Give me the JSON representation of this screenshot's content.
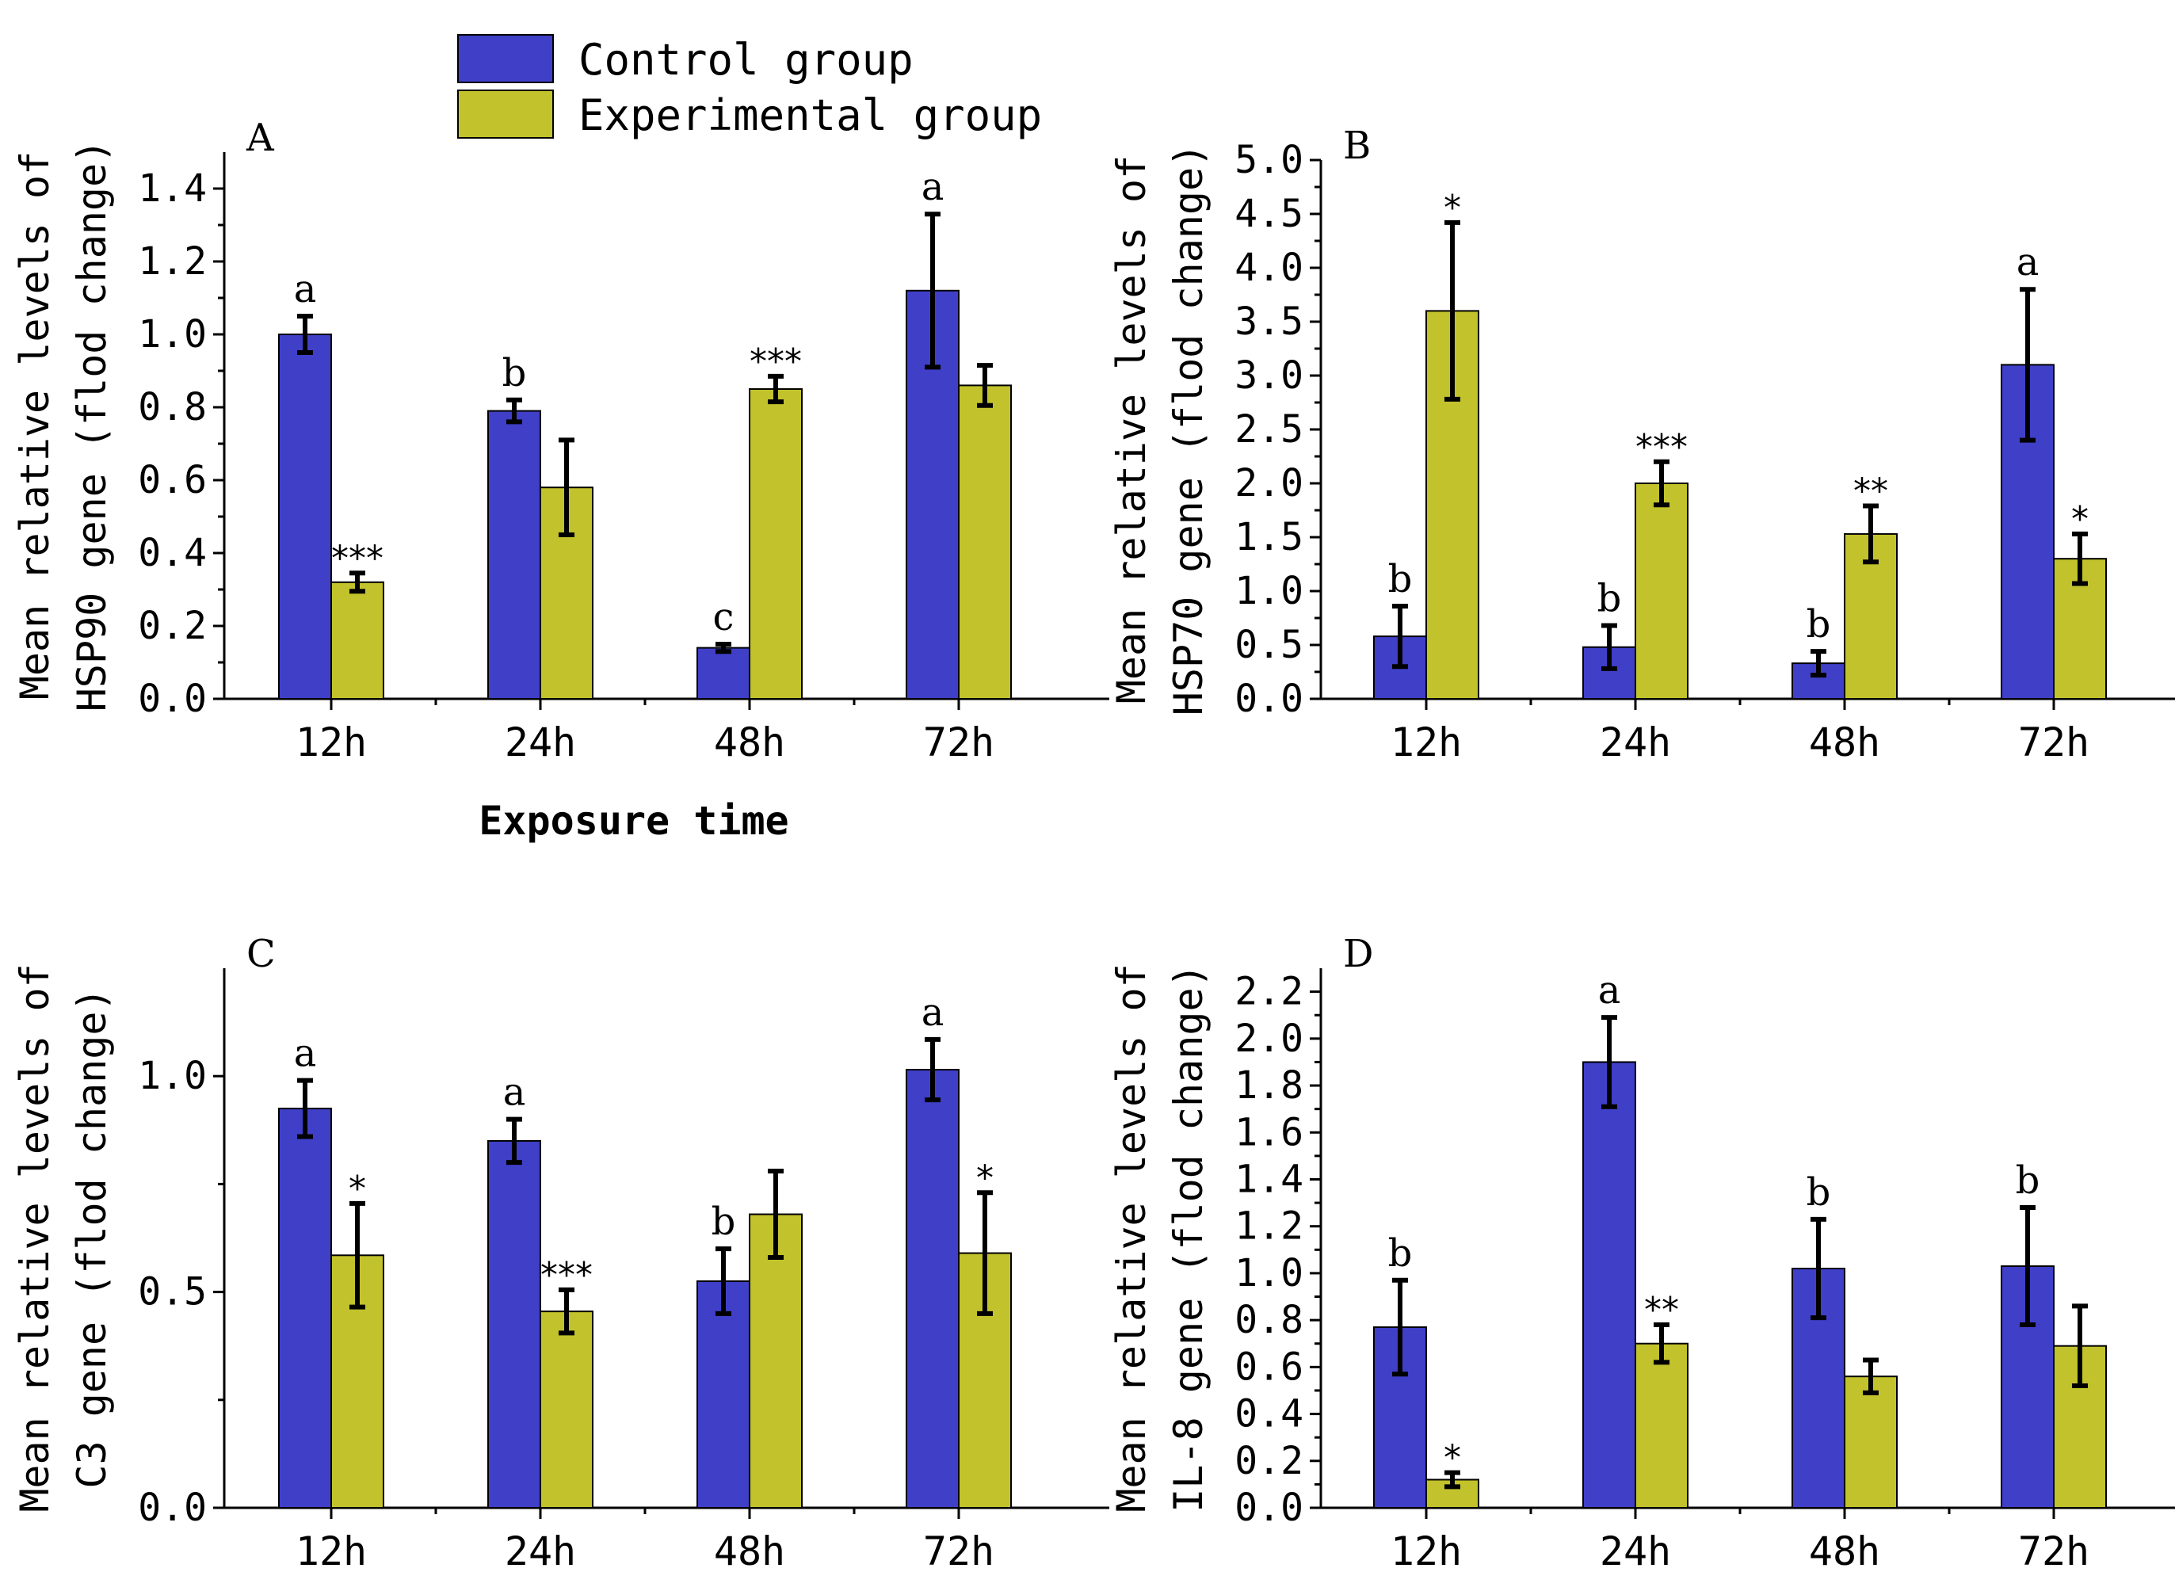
{
  "legend": {
    "entries": [
      {
        "name": "Control group",
        "color": "#3f3fc8"
      },
      {
        "name": "Experimental group",
        "color": "#c2c22c"
      }
    ]
  },
  "shared_xlabel": "Exposure time",
  "chart_data": [
    {
      "type": "bar",
      "panel": "A",
      "ylabel_line1": "Mean relative levels of",
      "ylabel_line2": "HSP90 gene (flod change)",
      "categories": [
        "12h",
        "24h",
        "48h",
        "72h"
      ],
      "ylim": [
        0,
        1.5
      ],
      "yticks": [
        "0.0",
        "0.2",
        "0.4",
        "0.6",
        "0.8",
        "1.0",
        "1.2",
        "1.4"
      ],
      "ytick_values": [
        0.0,
        0.2,
        0.4,
        0.6,
        0.8,
        1.0,
        1.2,
        1.4
      ],
      "series": [
        {
          "name": "Control group",
          "values": [
            1.0,
            0.79,
            0.14,
            1.12
          ],
          "errors": [
            0.05,
            0.03,
            0.01,
            0.21
          ],
          "labels": [
            "a",
            "b",
            "c",
            "a"
          ]
        },
        {
          "name": "Experimental group",
          "values": [
            0.32,
            0.58,
            0.85,
            0.86
          ],
          "errors": [
            0.025,
            0.13,
            0.035,
            0.055
          ],
          "labels": [
            "***",
            "",
            "***",
            ""
          ]
        }
      ]
    },
    {
      "type": "bar",
      "panel": "B",
      "ylabel_line1": "Mean relative levels of",
      "ylabel_line2": "HSP70 gene (flod change)",
      "categories": [
        "12h",
        "24h",
        "48h",
        "72h"
      ],
      "ylim": [
        0,
        5.0
      ],
      "yticks": [
        "0.0",
        "0.5",
        "1.0",
        "1.5",
        "2.0",
        "2.5",
        "3.0",
        "3.5",
        "4.0",
        "4.5",
        "5.0"
      ],
      "ytick_values": [
        0.0,
        0.5,
        1.0,
        1.5,
        2.0,
        2.5,
        3.0,
        3.5,
        4.0,
        4.5,
        5.0
      ],
      "series": [
        {
          "name": "Control group",
          "values": [
            0.58,
            0.48,
            0.33,
            3.1
          ],
          "errors": [
            0.28,
            0.2,
            0.11,
            0.7
          ],
          "labels": [
            "b",
            "b",
            "b",
            "a"
          ]
        },
        {
          "name": "Experimental group",
          "values": [
            3.6,
            2.0,
            1.53,
            1.3
          ],
          "errors": [
            0.82,
            0.2,
            0.26,
            0.23
          ],
          "labels": [
            "*",
            "***",
            "**",
            "*"
          ]
        }
      ]
    },
    {
      "type": "bar",
      "panel": "C",
      "ylabel_line1": "Mean relative levels of",
      "ylabel_line2": "C3 gene (flod change)",
      "categories": [
        "12h",
        "24h",
        "48h",
        "72h"
      ],
      "ylim": [
        0,
        1.25
      ],
      "yticks": [
        "0.0",
        "0.5",
        "1.0"
      ],
      "ytick_values": [
        0.0,
        0.5,
        1.0
      ],
      "series": [
        {
          "name": "Control group",
          "values": [
            0.925,
            0.85,
            0.525,
            1.015
          ],
          "errors": [
            0.065,
            0.05,
            0.075,
            0.07
          ],
          "labels": [
            "a",
            "a",
            "b",
            "a"
          ]
        },
        {
          "name": "Experimental group",
          "values": [
            0.585,
            0.455,
            0.68,
            0.59
          ],
          "errors": [
            0.12,
            0.05,
            0.1,
            0.14
          ],
          "labels": [
            "*",
            "***",
            "",
            "*"
          ]
        }
      ]
    },
    {
      "type": "bar",
      "panel": "D",
      "ylabel_line1": "Mean relative levels of",
      "ylabel_line2": "IL-8 gene (flod change)",
      "categories": [
        "12h",
        "24h",
        "48h",
        "72h"
      ],
      "ylim": [
        0,
        2.3
      ],
      "yticks": [
        "0.0",
        "0.2",
        "0.4",
        "0.6",
        "0.8",
        "1.0",
        "1.2",
        "1.4",
        "1.6",
        "1.8",
        "2.0",
        "2.2"
      ],
      "ytick_values": [
        0.0,
        0.2,
        0.4,
        0.6,
        0.8,
        1.0,
        1.2,
        1.4,
        1.6,
        1.8,
        2.0,
        2.2
      ],
      "series": [
        {
          "name": "Control group",
          "values": [
            0.77,
            1.9,
            1.02,
            1.03
          ],
          "errors": [
            0.2,
            0.19,
            0.21,
            0.25
          ],
          "labels": [
            "b",
            "a",
            "b",
            "b"
          ]
        },
        {
          "name": "Experimental group",
          "values": [
            0.12,
            0.7,
            0.56,
            0.69
          ],
          "errors": [
            0.03,
            0.08,
            0.07,
            0.17
          ],
          "labels": [
            "*",
            "**",
            "",
            ""
          ]
        }
      ]
    }
  ]
}
